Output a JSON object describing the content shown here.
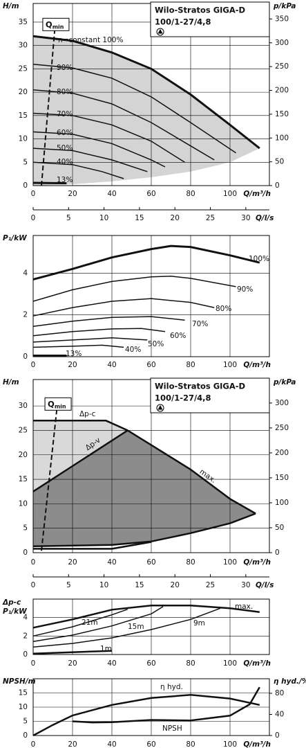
{
  "chart_data": [
    {
      "type": "line",
      "title": "Wilo-Stratos GIGA-D",
      "subtitle": "100/1-27/4,8",
      "ylabel": "H/m",
      "y2label": "p/kPa",
      "xlabel": "Q/m³/h",
      "x2label": "Q/l/s",
      "xlim": [
        0,
        120
      ],
      "xticks": [
        0,
        20,
        40,
        60,
        80,
        100
      ],
      "x2lim": [
        0,
        33.33
      ],
      "x2ticks": [
        0,
        5,
        10,
        15,
        20,
        25,
        30
      ],
      "ylim": [
        0,
        39
      ],
      "yticks": [
        0,
        5,
        10,
        15,
        20,
        25,
        30,
        35
      ],
      "y2lim": [
        0,
        382.6
      ],
      "y2ticks": [
        0,
        50,
        100,
        150,
        200,
        250,
        300,
        350
      ],
      "grid": true,
      "fill_color": "#d4d4d4",
      "series": [
        {
          "name": "n=constant 100%",
          "line_width": 3,
          "x": [
            0,
            20,
            40,
            60,
            80,
            100,
            115
          ],
          "values": [
            32,
            31,
            28.5,
            25,
            19.5,
            13,
            8
          ]
        },
        {
          "name": "90%",
          "line_width": 1.5,
          "x": [
            0,
            20,
            40,
            60,
            80,
            103
          ],
          "values": [
            26,
            25.2,
            23,
            19,
            13.5,
            7
          ]
        },
        {
          "name": "80%",
          "line_width": 1.5,
          "x": [
            0,
            20,
            40,
            60,
            80,
            92
          ],
          "values": [
            20.5,
            19.8,
            17.5,
            13.5,
            8.5,
            5.5
          ]
        },
        {
          "name": "70%",
          "line_width": 1.5,
          "x": [
            0,
            20,
            40,
            60,
            77
          ],
          "values": [
            15.5,
            15,
            13,
            9.5,
            5
          ]
        },
        {
          "name": "60%",
          "line_width": 1.5,
          "x": [
            0,
            20,
            40,
            60,
            67
          ],
          "values": [
            11.5,
            11,
            9,
            5.5,
            4
          ]
        },
        {
          "name": "50%",
          "line_width": 1.5,
          "x": [
            0,
            20,
            40,
            58
          ],
          "values": [
            8,
            7.5,
            5.5,
            3
          ]
        },
        {
          "name": "40%",
          "line_width": 1.5,
          "x": [
            0,
            20,
            35,
            46
          ],
          "values": [
            5,
            4.5,
            3,
            1.5
          ]
        },
        {
          "name": "13%",
          "line_width": 3,
          "x": [
            0,
            17
          ],
          "values": [
            0.6,
            0.5
          ]
        }
      ],
      "range_lower": {
        "x": [
          0,
          20,
          40,
          60,
          80,
          100,
          115
        ],
        "values": [
          0,
          0.3,
          0.9,
          1.8,
          3,
          5,
          8
        ]
      },
      "qmin": {
        "label": "Q",
        "sub": "min",
        "x": [
          4.2,
          11.2
        ],
        "values": [
          0,
          34.5
        ]
      }
    },
    {
      "type": "line",
      "ylabel": "P₁/kW",
      "xlabel": "Q/m³/h",
      "xlim": [
        0,
        120
      ],
      "xticks": [
        0,
        20,
        40,
        60,
        80,
        100
      ],
      "ylim": [
        0,
        5.8
      ],
      "yticks": [
        0,
        2,
        4
      ],
      "grid": true,
      "series": [
        {
          "name": "100%",
          "line_width": 3,
          "x": [
            0,
            20,
            40,
            60,
            70,
            80,
            100,
            115
          ],
          "values": [
            3.7,
            4.2,
            4.75,
            5.15,
            5.3,
            5.25,
            4.85,
            4.5
          ]
        },
        {
          "name": "90%",
          "line_width": 1.5,
          "x": [
            0,
            20,
            40,
            60,
            70,
            80,
            103
          ],
          "values": [
            2.65,
            3.2,
            3.6,
            3.82,
            3.85,
            3.75,
            3.35
          ]
        },
        {
          "name": "80%",
          "line_width": 1.5,
          "x": [
            0,
            20,
            40,
            60,
            80,
            92
          ],
          "values": [
            1.95,
            2.35,
            2.65,
            2.78,
            2.6,
            2.35
          ]
        },
        {
          "name": "70%",
          "line_width": 1.5,
          "x": [
            0,
            20,
            40,
            60,
            77
          ],
          "values": [
            1.45,
            1.7,
            1.88,
            1.92,
            1.75
          ]
        },
        {
          "name": "60%",
          "line_width": 1.5,
          "x": [
            0,
            20,
            40,
            55,
            67
          ],
          "values": [
            1,
            1.2,
            1.33,
            1.35,
            1.2
          ]
        },
        {
          "name": "50%",
          "line_width": 1.5,
          "x": [
            0,
            20,
            40,
            58
          ],
          "values": [
            0.7,
            0.8,
            0.9,
            0.8
          ]
        },
        {
          "name": "40%",
          "line_width": 1.5,
          "x": [
            0,
            20,
            35,
            46
          ],
          "values": [
            0.45,
            0.5,
            0.55,
            0.45
          ]
        },
        {
          "name": "13%",
          "line_width": 3,
          "x": [
            0,
            17
          ],
          "values": [
            0.05,
            0.05
          ]
        }
      ]
    },
    {
      "type": "line",
      "title": "Wilo-Stratos GIGA-D",
      "subtitle": "100/1-27/4,8",
      "ylabel": "H/m",
      "y2label": "p/kPa",
      "xlabel": "Q/m³/h",
      "x2label": "Q/l/s",
      "xlim": [
        0,
        120
      ],
      "xticks": [
        0,
        20,
        40,
        60,
        80,
        100
      ],
      "x2lim": [
        0,
        33.33
      ],
      "x2ticks": [
        0,
        5,
        10,
        15,
        20,
        25,
        30
      ],
      "ylim": [
        0,
        35.4
      ],
      "yticks": [
        0,
        5,
        10,
        15,
        20,
        25,
        30
      ],
      "y2lim": [
        0,
        347
      ],
      "y2ticks": [
        0,
        50,
        100,
        150,
        200,
        250,
        300
      ],
      "grid": true,
      "fill_colors": [
        "#d9d9d9",
        "#8c8c8c"
      ],
      "series": [
        {
          "name": "Δp-c",
          "line_width": 2.5,
          "x": [
            0,
            37,
            48
          ],
          "values": [
            27,
            27,
            25
          ]
        },
        {
          "name": "Δp-v",
          "line_width": 2.5,
          "x": [
            0,
            48
          ],
          "values": [
            12.5,
            25
          ]
        },
        {
          "name": "max.",
          "line_width": 2.5,
          "x": [
            48,
            60,
            80,
            100,
            113
          ],
          "values": [
            25,
            22,
            17,
            11,
            8
          ]
        }
      ],
      "range_lower": {
        "x": [
          0,
          40,
          60,
          80,
          100,
          113
        ],
        "values": [
          1.3,
          1.6,
          2.3,
          4,
          6,
          8
        ]
      },
      "range_min": {
        "x": [
          0,
          40,
          60
        ],
        "values": [
          0.8,
          0.8,
          2.2
        ]
      },
      "qmin": {
        "label": "Q",
        "sub": "min",
        "x": [
          4.2,
          12.3
        ],
        "values": [
          0.4,
          30.4
        ]
      }
    },
    {
      "type": "line",
      "ylabel": "P₁/kW",
      "ylabel_top": "Δp-c",
      "xlabel": "Q/m³/h",
      "xlim": [
        0,
        120
      ],
      "xticks": [
        0,
        20,
        40,
        60,
        80,
        100
      ],
      "ylim": [
        0,
        6
      ],
      "yticks": [
        0,
        2,
        4
      ],
      "grid": true,
      "series": [
        {
          "name": "max.",
          "line_width": 2.5,
          "x": [
            0,
            20,
            40,
            60,
            80,
            100,
            115
          ],
          "values": [
            2.9,
            3.8,
            4.85,
            5.3,
            5.3,
            5,
            4.6
          ]
        },
        {
          "name": "21m",
          "line_width": 1.5,
          "x": [
            0,
            20,
            40,
            48
          ],
          "values": [
            2,
            3,
            4.3,
            4.9
          ]
        },
        {
          "name": "15m",
          "line_width": 1.5,
          "x": [
            0,
            20,
            40,
            60,
            66
          ],
          "values": [
            1.4,
            2.1,
            3.1,
            4.4,
            5.2
          ]
        },
        {
          "name": "9m",
          "line_width": 1.5,
          "x": [
            0,
            20,
            40,
            60,
            80,
            95
          ],
          "values": [
            0.8,
            1.2,
            1.8,
            2.7,
            3.8,
            5
          ]
        },
        {
          "name": "1m",
          "line_width": 2.5,
          "x": [
            0,
            40
          ],
          "values": [
            0.1,
            0.4
          ]
        }
      ]
    },
    {
      "type": "line",
      "ylabel": "NPSH/m",
      "y2label": "η hyd./%",
      "xlabel": "Q/m³/h",
      "xlim": [
        0,
        120
      ],
      "xticks": [
        0,
        20,
        40,
        60,
        80,
        100
      ],
      "ylim": [
        0,
        20
      ],
      "yticks": [
        0,
        5,
        10,
        15
      ],
      "y2lim": [
        0,
        107.5
      ],
      "y2ticks": [
        0,
        40,
        80
      ],
      "grid": true,
      "series": [
        {
          "name": "η hyd.",
          "axis": "y2",
          "line_width": 2.5,
          "x": [
            0,
            10,
            20,
            40,
            60,
            80,
            100,
            115
          ],
          "values": [
            0,
            20,
            38,
            58,
            71,
            77,
            70,
            58
          ]
        },
        {
          "name": "NPSH",
          "line_width": 2.5,
          "x": [
            20,
            30,
            40,
            60,
            80,
            100,
            110,
            115
          ],
          "values": [
            5,
            4.6,
            4.7,
            5.5,
            5.3,
            7,
            11,
            17
          ]
        }
      ]
    }
  ]
}
